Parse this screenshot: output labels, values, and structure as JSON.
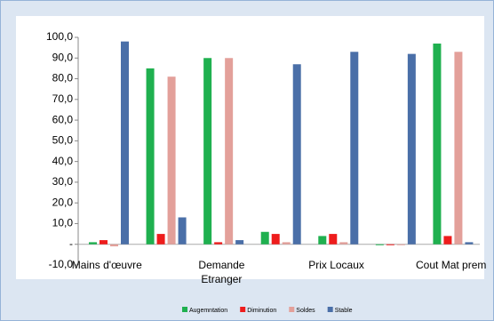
{
  "chart_data": {
    "type": "bar",
    "categories": [
      "Mains d'œuvre",
      null,
      "Demande Etranger",
      null,
      "Prix Locaux",
      null,
      "Cout Mat prem"
    ],
    "series": [
      {
        "name": "Augemntation",
        "color": "#1fb04f",
        "values": [
          1,
          85,
          90,
          6,
          4,
          0,
          97
        ]
      },
      {
        "name": "Diminution",
        "color": "#ee1c1c",
        "values": [
          2,
          5,
          1,
          5,
          5,
          0,
          4
        ]
      },
      {
        "name": "Soldes",
        "color": "#e3a09a",
        "values": [
          -1,
          81,
          90,
          1,
          1,
          0,
          93
        ]
      },
      {
        "name": "Stable",
        "color": "#4a6fa8",
        "values": [
          98,
          13,
          2,
          87,
          93,
          92,
          1
        ]
      }
    ],
    "ylim": [
      -10,
      100
    ],
    "yticks": [
      {
        "value": -10,
        "label": "-10,0"
      },
      {
        "value": 0,
        "label": "-"
      },
      {
        "value": 10,
        "label": "10,0"
      },
      {
        "value": 20,
        "label": "20,0"
      },
      {
        "value": 30,
        "label": "30,0"
      },
      {
        "value": 40,
        "label": "40,0"
      },
      {
        "value": 50,
        "label": "50,0"
      },
      {
        "value": 60,
        "label": "60,0"
      },
      {
        "value": 70,
        "label": "70,0"
      },
      {
        "value": 80,
        "label": "80,0"
      },
      {
        "value": 90,
        "label": "90,0"
      },
      {
        "value": {
          "value": 100
        },
        "label": "100,0"
      }
    ],
    "legend": "bottom"
  }
}
